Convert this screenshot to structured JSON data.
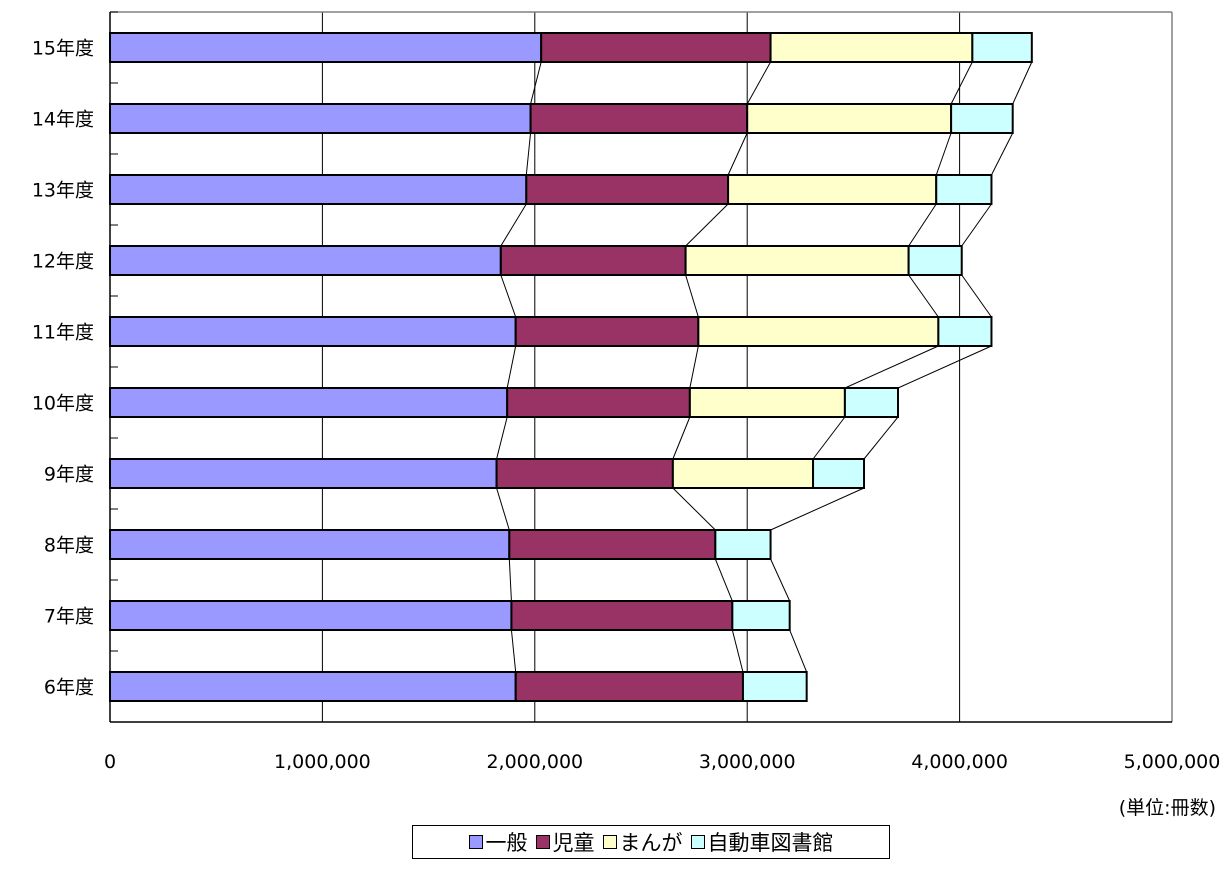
{
  "chart_data": {
    "type": "bar",
    "orientation": "horizontal",
    "stacked": true,
    "series_lines": true,
    "categories": [
      "15年度",
      "14年度",
      "13年度",
      "12年度",
      "11年度",
      "10年度",
      "9年度",
      "8年度",
      "7年度",
      "6年度"
    ],
    "series": [
      {
        "name": "一般",
        "color": "#9999ff",
        "values": [
          2030000,
          1980000,
          1960000,
          1840000,
          1910000,
          1870000,
          1820000,
          1880000,
          1890000,
          1910000
        ]
      },
      {
        "name": "児童",
        "color": "#993366",
        "values": [
          1080000,
          1020000,
          950000,
          870000,
          860000,
          860000,
          830000,
          970000,
          1040000,
          1070000
        ]
      },
      {
        "name": "まんが",
        "color": "#ffffcc",
        "values": [
          950000,
          960000,
          980000,
          1050000,
          1130000,
          730000,
          660000,
          0,
          0,
          0
        ]
      },
      {
        "name": "自動車図書館",
        "color": "#ccffff",
        "values": [
          280000,
          290000,
          260000,
          250000,
          250000,
          250000,
          240000,
          260000,
          270000,
          300000
        ]
      }
    ],
    "xlim": [
      0,
      5000000
    ],
    "x_ticks": [
      0,
      1000000,
      2000000,
      3000000,
      4000000,
      5000000
    ],
    "x_tick_labels": [
      "0",
      "1,000,000",
      "2,000,000",
      "3,000,000",
      "4,000,000",
      "5,000,000"
    ],
    "grid": "vertical",
    "legend_position": "bottom",
    "unit_note": "(単位:冊数)"
  }
}
